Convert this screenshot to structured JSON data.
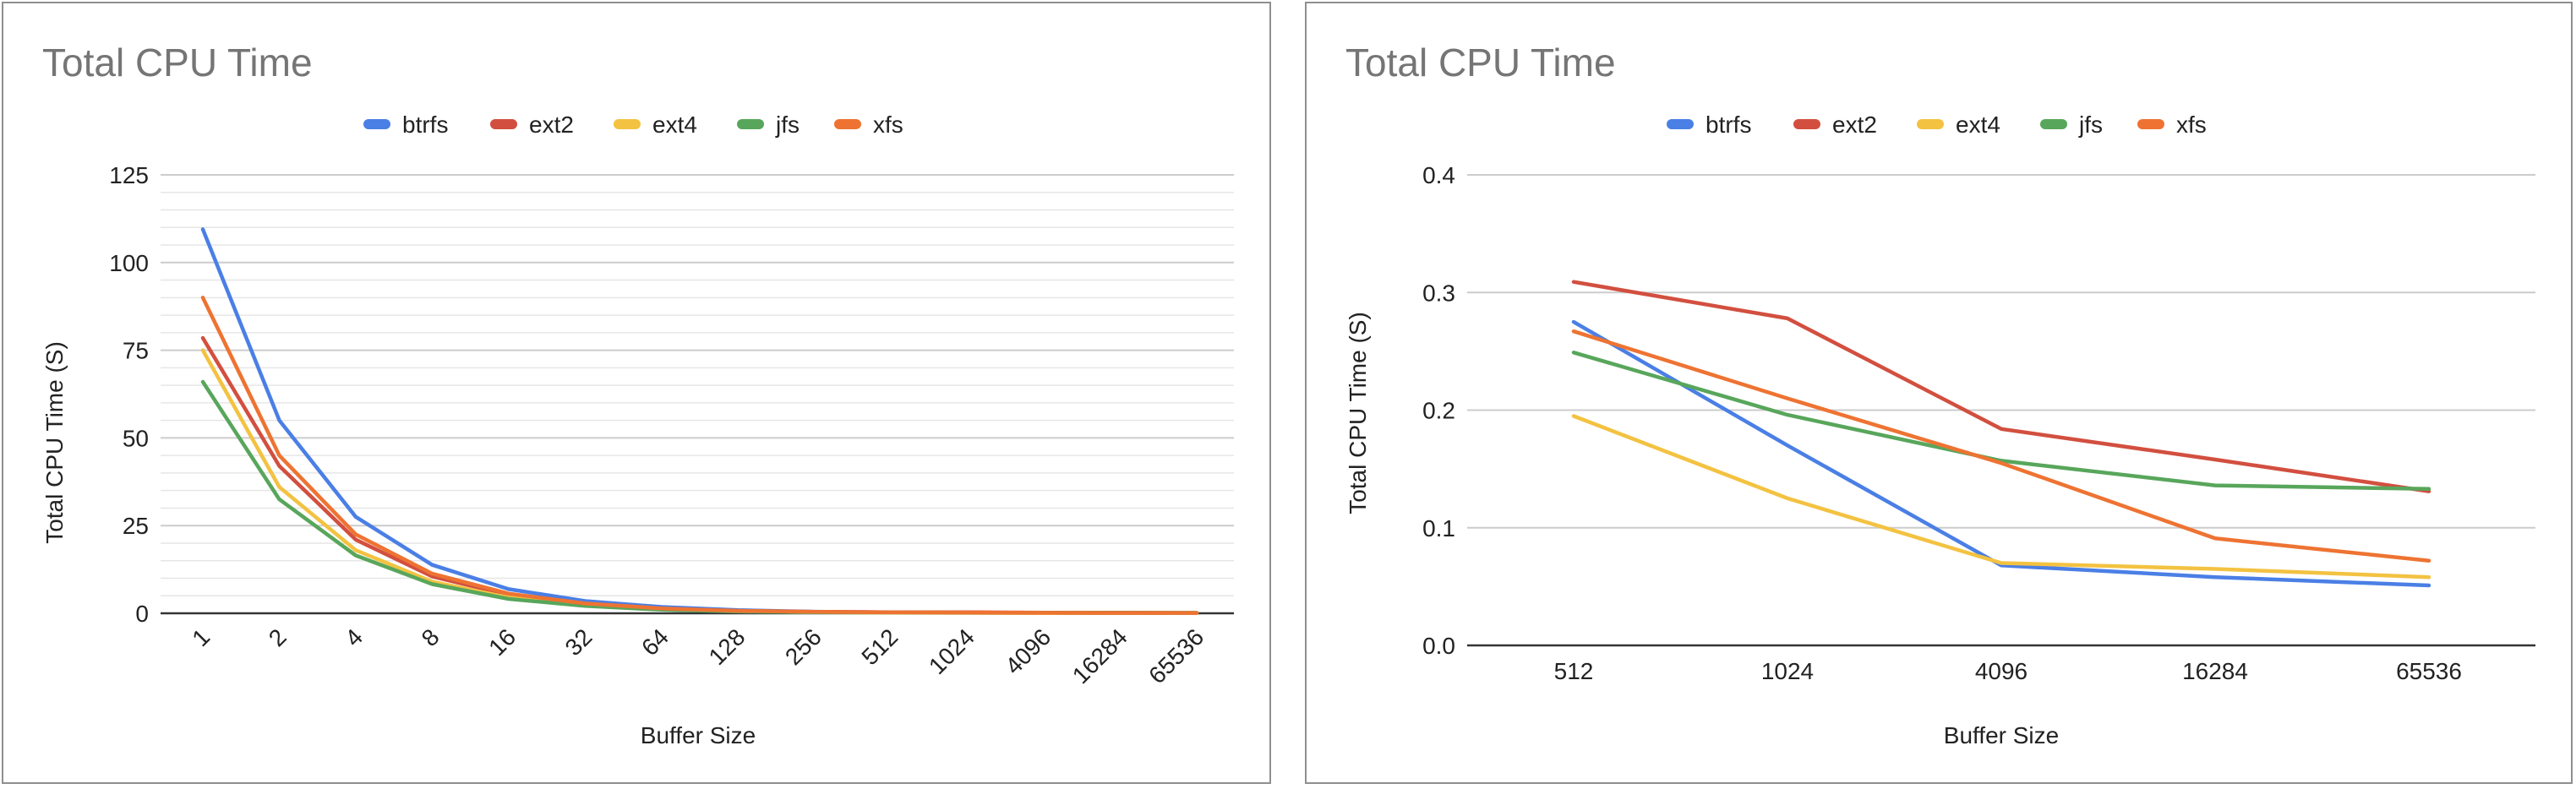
{
  "colors": {
    "btrfs": "#4a7fe5",
    "ext2": "#d24f3f",
    "ext4": "#f3c241",
    "jfs": "#58a65b",
    "xfs": "#ee7332",
    "gridline_major": "#cccccc",
    "gridline_minor": "#e6e6e6",
    "baseline": "#333333",
    "title": "#757575",
    "border": "#8f8f8f"
  },
  "chart_data": [
    {
      "type": "line",
      "title": "Total CPU Time",
      "xlabel": "Buffer Size",
      "ylabel": "Total CPU Time (S)",
      "categories": [
        "1",
        "2",
        "4",
        "8",
        "16",
        "32",
        "64",
        "128",
        "256",
        "512",
        "1024",
        "4096",
        "16284",
        "65536"
      ],
      "ylim": [
        0,
        125
      ],
      "yticks": [
        "0",
        "25",
        "50",
        "75",
        "100",
        "125"
      ],
      "grid": true,
      "legend_position": "top",
      "series": [
        {
          "name": "btrfs",
          "color_key": "btrfs",
          "values": [
            109.5,
            55,
            27.5,
            13.8,
            6.9,
            3.5,
            1.8,
            0.9,
            0.45,
            0.27,
            0.17,
            0.07,
            0.06,
            0.05
          ]
        },
        {
          "name": "ext2",
          "color_key": "ext2",
          "values": [
            78.5,
            42,
            21,
            10.5,
            5.3,
            2.6,
            1.3,
            0.7,
            0.4,
            0.31,
            0.28,
            0.18,
            0.16,
            0.13
          ]
        },
        {
          "name": "ext4",
          "color_key": "ext4",
          "values": [
            75,
            36,
            18,
            9,
            4.5,
            2.3,
            1.1,
            0.6,
            0.3,
            0.2,
            0.13,
            0.07,
            0.065,
            0.06
          ]
        },
        {
          "name": "jfs",
          "color_key": "jfs",
          "values": [
            66,
            32.5,
            16.5,
            8.3,
            4.1,
            2.1,
            1.0,
            0.5,
            0.3,
            0.25,
            0.2,
            0.16,
            0.14,
            0.13
          ]
        },
        {
          "name": "xfs",
          "color_key": "xfs",
          "values": [
            90,
            45,
            22.5,
            11.3,
            5.6,
            2.8,
            1.4,
            0.7,
            0.4,
            0.27,
            0.21,
            0.15,
            0.09,
            0.07
          ]
        }
      ]
    },
    {
      "type": "line",
      "title": "Total CPU Time",
      "xlabel": "Buffer Size",
      "ylabel": "Total CPU Time (S)",
      "categories": [
        "512",
        "1024",
        "4096",
        "16284",
        "65536"
      ],
      "ylim": [
        0,
        0.4
      ],
      "yticks": [
        "0.0",
        "0.1",
        "0.2",
        "0.3",
        "0.4"
      ],
      "grid": true,
      "legend_position": "top",
      "series": [
        {
          "name": "btrfs",
          "color_key": "btrfs",
          "values": [
            0.275,
            0.17,
            0.068,
            0.058,
            0.051
          ]
        },
        {
          "name": "ext2",
          "color_key": "ext2",
          "values": [
            0.309,
            0.278,
            0.184,
            0.158,
            0.131
          ]
        },
        {
          "name": "ext4",
          "color_key": "ext4",
          "values": [
            0.195,
            0.125,
            0.07,
            0.065,
            0.058
          ]
        },
        {
          "name": "jfs",
          "color_key": "jfs",
          "values": [
            0.249,
            0.196,
            0.157,
            0.136,
            0.133
          ]
        },
        {
          "name": "xfs",
          "color_key": "xfs",
          "values": [
            0.267,
            0.21,
            0.155,
            0.091,
            0.072
          ]
        }
      ]
    }
  ]
}
